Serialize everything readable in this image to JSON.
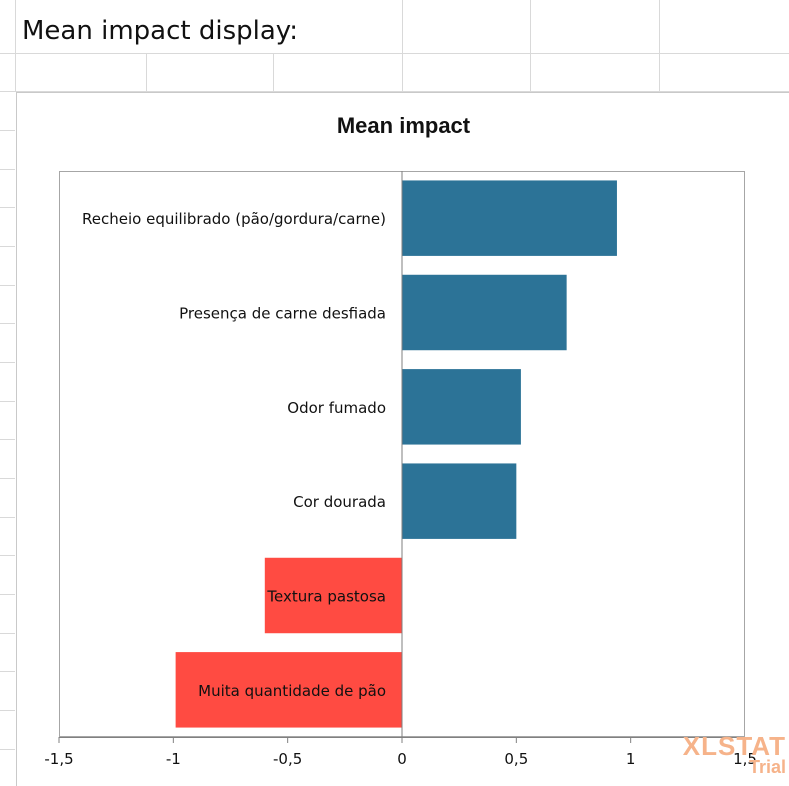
{
  "sheet": {
    "title": "Mean impact display:"
  },
  "watermark": {
    "brand": "XLSTAT",
    "sub": "Trial"
  },
  "chart_data": {
    "type": "bar",
    "orientation": "horizontal",
    "title": "Mean impact",
    "xlabel": "",
    "ylabel": "",
    "xlim": [
      -1.5,
      1.5
    ],
    "x_ticks": [
      -1.5,
      -1,
      -0.5,
      0,
      0.5,
      1,
      1.5
    ],
    "x_tick_labels": [
      "-1,5",
      "-1",
      "-0,5",
      "0",
      "0,5",
      "1",
      "1,5"
    ],
    "grid": false,
    "categories": [
      "Recheio equilibrado (pão/gordura/carne)",
      "Presença de carne desfiada",
      "Odor fumado",
      "Cor dourada",
      "Textura pastosa",
      "Muita quantidade de pão"
    ],
    "values": [
      0.94,
      0.72,
      0.52,
      0.5,
      -0.6,
      -0.99
    ],
    "colors": {
      "positive": "#2c7397",
      "negative": "#ff4b42"
    }
  }
}
